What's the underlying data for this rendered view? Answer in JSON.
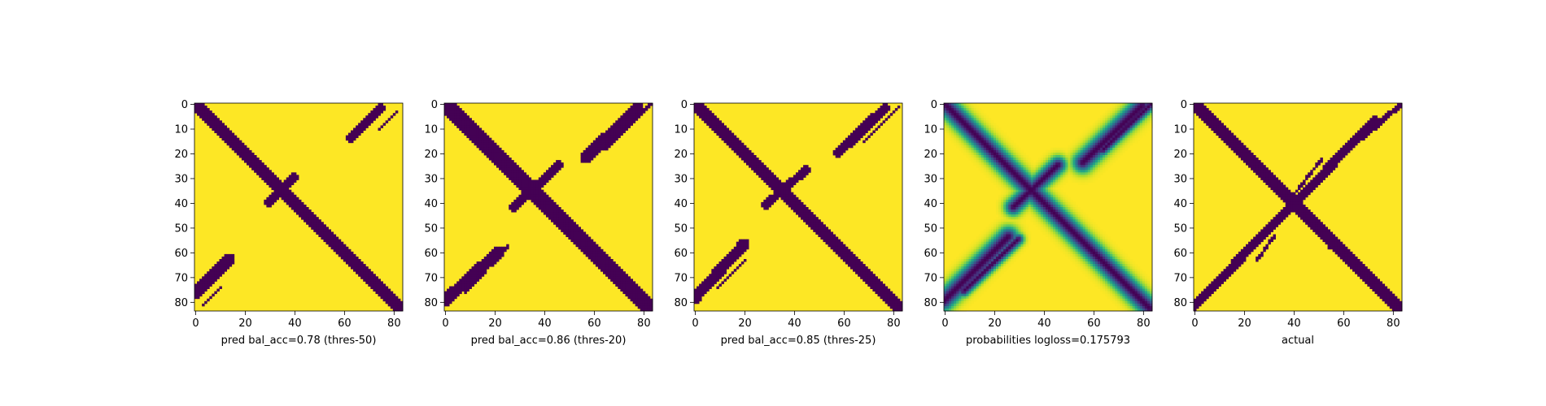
{
  "chart_data": [
    {
      "type": "heatmap",
      "xlabel": "pred bal_acc=0.78 (thres-50)",
      "size": 84,
      "colormap": "viridis",
      "binary": true,
      "xticks": [
        0,
        20,
        40,
        60,
        80
      ],
      "yticks": [
        0,
        10,
        20,
        30,
        40,
        50,
        60,
        70,
        80
      ],
      "features": [
        {
          "kind": "band",
          "x0": 0,
          "y0": 0,
          "x1": 83,
          "y1": 83,
          "width": 2.6
        },
        {
          "kind": "band",
          "x0": 30,
          "y0": 40,
          "x1": 40,
          "y1": 30,
          "width": 1.6
        },
        {
          "kind": "band",
          "x0": 0,
          "y0": 77,
          "x1": 14,
          "y1": 63,
          "width": 2.2
        },
        {
          "kind": "band",
          "x0": 3,
          "y0": 82,
          "x1": 11,
          "y1": 74,
          "width": 0.6
        },
        {
          "kind": "band",
          "x0": 63,
          "y0": 14,
          "x1": 75,
          "y1": 2,
          "width": 1.6
        },
        {
          "kind": "band",
          "x0": 74,
          "y0": 11,
          "x1": 82,
          "y1": 3,
          "width": 0.6
        }
      ]
    },
    {
      "type": "heatmap",
      "xlabel": "pred bal_acc=0.86 (thres-20)",
      "size": 84,
      "colormap": "viridis",
      "binary": true,
      "xticks": [
        0,
        20,
        40,
        60,
        80
      ],
      "yticks": [
        0,
        10,
        20,
        30,
        40,
        50,
        60,
        70,
        80
      ],
      "features": [
        {
          "kind": "band",
          "x0": 0,
          "y0": 0,
          "x1": 83,
          "y1": 83,
          "width": 3.0
        },
        {
          "kind": "band",
          "x0": 28,
          "y0": 42,
          "x1": 46,
          "y1": 25,
          "width": 1.8
        },
        {
          "kind": "band",
          "x0": 0,
          "y0": 80,
          "x1": 22,
          "y1": 60,
          "width": 2.4
        },
        {
          "kind": "band",
          "x0": 8,
          "y0": 77,
          "x1": 26,
          "y1": 57,
          "width": 0.7
        },
        {
          "kind": "band",
          "x0": 57,
          "y0": 22,
          "x1": 78,
          "y1": 2,
          "width": 2.4
        },
        {
          "kind": "band",
          "x0": 64,
          "y0": 19,
          "x1": 84,
          "y1": 0,
          "width": 0.7
        }
      ]
    },
    {
      "type": "heatmap",
      "xlabel": "pred bal_acc=0.85 (thres-25)",
      "size": 84,
      "colormap": "viridis",
      "binary": true,
      "xticks": [
        0,
        20,
        40,
        60,
        80
      ],
      "yticks": [
        0,
        10,
        20,
        30,
        40,
        50,
        60,
        70,
        80
      ],
      "features": [
        {
          "kind": "band",
          "x0": 0,
          "y0": 0,
          "x1": 83,
          "y1": 83,
          "width": 2.8
        },
        {
          "kind": "band",
          "x0": 29,
          "y0": 41,
          "x1": 45,
          "y1": 27,
          "width": 1.7
        },
        {
          "kind": "band",
          "x0": 0,
          "y0": 79,
          "x1": 20,
          "y1": 57,
          "width": 2.2
        },
        {
          "kind": "band",
          "x0": 9,
          "y0": 75,
          "x1": 21,
          "y1": 63,
          "width": 0.7
        },
        {
          "kind": "band",
          "x0": 58,
          "y0": 20,
          "x1": 77,
          "y1": 2,
          "width": 2.0
        },
        {
          "kind": "band",
          "x0": 68,
          "y0": 16,
          "x1": 83,
          "y1": 1,
          "width": 0.7
        }
      ]
    },
    {
      "type": "heatmap",
      "xlabel": "probabilities logloss=0.175793",
      "size": 84,
      "colormap": "viridis",
      "binary": false,
      "xticks": [
        0,
        20,
        40,
        60,
        80
      ],
      "yticks": [
        0,
        10,
        20,
        30,
        40,
        50,
        60,
        70,
        80
      ],
      "features": [
        {
          "kind": "band",
          "x0": 0,
          "y0": 0,
          "x1": 83,
          "y1": 83,
          "width": 3.8
        },
        {
          "kind": "band",
          "x0": 28,
          "y0": 42,
          "x1": 46,
          "y1": 25,
          "width": 3.2
        },
        {
          "kind": "band",
          "x0": 0,
          "y0": 80,
          "x1": 26,
          "y1": 54,
          "width": 3.8
        },
        {
          "kind": "band",
          "x0": 8,
          "y0": 76,
          "x1": 30,
          "y1": 55,
          "width": 2.2
        },
        {
          "kind": "band",
          "x0": 56,
          "y0": 24,
          "x1": 80,
          "y1": 1,
          "width": 3.8
        },
        {
          "kind": "band",
          "x0": 64,
          "y0": 19,
          "x1": 84,
          "y1": 0,
          "width": 2.2
        }
      ]
    },
    {
      "type": "heatmap",
      "xlabel": "actual",
      "size": 84,
      "colormap": "viridis",
      "binary": true,
      "xticks": [
        0,
        20,
        40,
        60,
        80
      ],
      "yticks": [
        0,
        10,
        20,
        30,
        40,
        50,
        60,
        70,
        80
      ],
      "features": [
        {
          "kind": "band",
          "x0": 0,
          "y0": 0,
          "x1": 83,
          "y1": 83,
          "width": 2.4
        },
        {
          "kind": "band",
          "x0": 0,
          "y0": 82,
          "x1": 73,
          "y1": 7,
          "width": 1.8
        },
        {
          "kind": "band",
          "x0": 22,
          "y0": 58,
          "x1": 50,
          "y1": 30,
          "width": 1.0
        },
        {
          "kind": "band",
          "x0": 5,
          "y0": 76,
          "x1": 18,
          "y1": 62,
          "width": 0.7
        },
        {
          "kind": "band",
          "x0": 25,
          "y0": 64,
          "x1": 33,
          "y1": 53,
          "width": 0.6
        },
        {
          "kind": "band",
          "x0": 38,
          "y0": 40,
          "x1": 52,
          "y1": 22,
          "width": 0.6
        },
        {
          "kind": "band",
          "x0": 68,
          "y0": 14,
          "x1": 84,
          "y1": 0,
          "width": 1.0
        },
        {
          "kind": "band",
          "x0": 55,
          "y0": 58,
          "x1": 63,
          "y1": 63,
          "width": 0.8
        }
      ]
    }
  ]
}
